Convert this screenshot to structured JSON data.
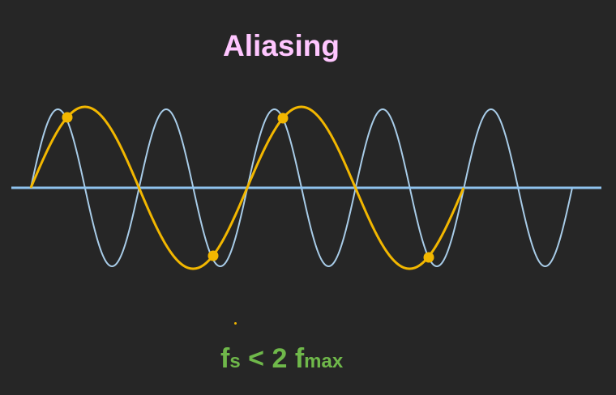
{
  "title": "Aliasing",
  "formula": {
    "f_s": "f",
    "f_s_sub": "s",
    "operator": "<",
    "factor": "2",
    "f_max": "f",
    "f_max_sub": "max"
  },
  "colors": {
    "background": "#262626",
    "title": "#ffc6ff",
    "axis": "#8fc3ee",
    "signal": "#a8cce8",
    "alias": "#f2b700",
    "formula": "#6fb84a"
  },
  "diagram": {
    "signal_cycles": 5,
    "alias_cycles": 2,
    "sample_points": 4
  }
}
